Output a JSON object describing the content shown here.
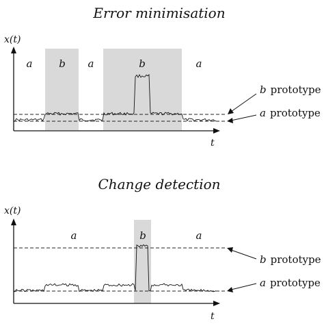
{
  "panels": [
    {
      "title": "Error minimisation",
      "y_label": "x(t)",
      "x_label": "t",
      "segments": [
        "a",
        "b",
        "a",
        "b",
        "a"
      ],
      "prototypes": [
        {
          "var": "b",
          "word": "prototype"
        },
        {
          "var": "a",
          "word": "prototype"
        }
      ]
    },
    {
      "title": "Change detection",
      "y_label": "x(t)",
      "x_label": "t",
      "segments": [
        "a",
        "b",
        "a"
      ],
      "prototypes": [
        {
          "var": "b",
          "word": "prototype"
        },
        {
          "var": "a",
          "word": "prototype"
        }
      ]
    }
  ]
}
